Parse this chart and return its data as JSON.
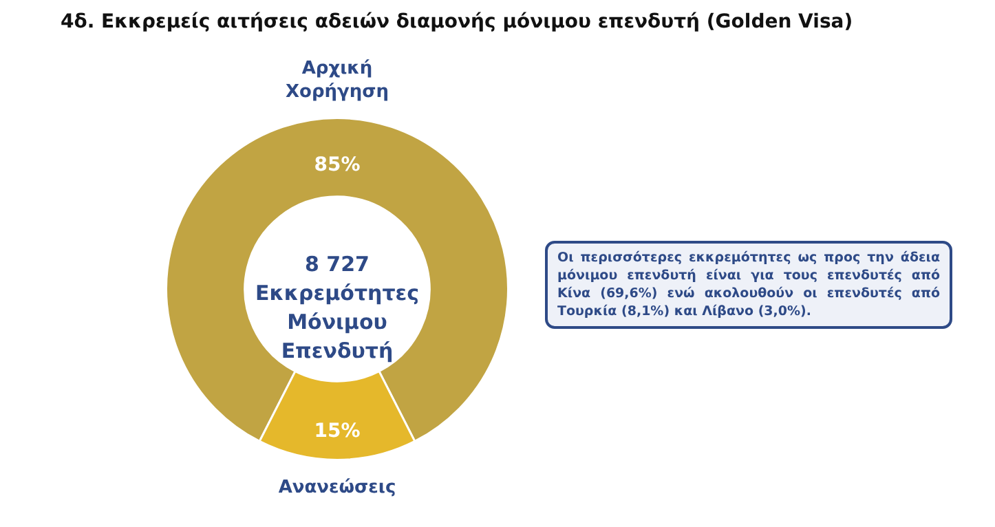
{
  "chart_data": {
    "type": "donut",
    "title": "4δ. Εκκρεμείς αιτήσεις αδειών διαμονής μόνιμου επενδυτή (Golden Visa)",
    "categories": [
      "Αρχική Χορήγηση",
      "Ανανεώσεις"
    ],
    "values": [
      85,
      15
    ],
    "value_labels": [
      "85%",
      "15%"
    ],
    "colors": [
      "#c1a443",
      "#e5b82b"
    ],
    "legend": false,
    "annotations": [
      "8 727 Εκκρεμότητες Μόνιμου Επενδυτή",
      "Οι περισσότερες εκκρεμότητες ως προς την άδεια μόνιμου επενδυτή είναι για τους επενδυτές από Κίνα (69,6%) ενώ ακολουθούν οι επενδυτές από Τουρκία (8,1%) και Λίβανο (3,0%)."
    ]
  }
}
